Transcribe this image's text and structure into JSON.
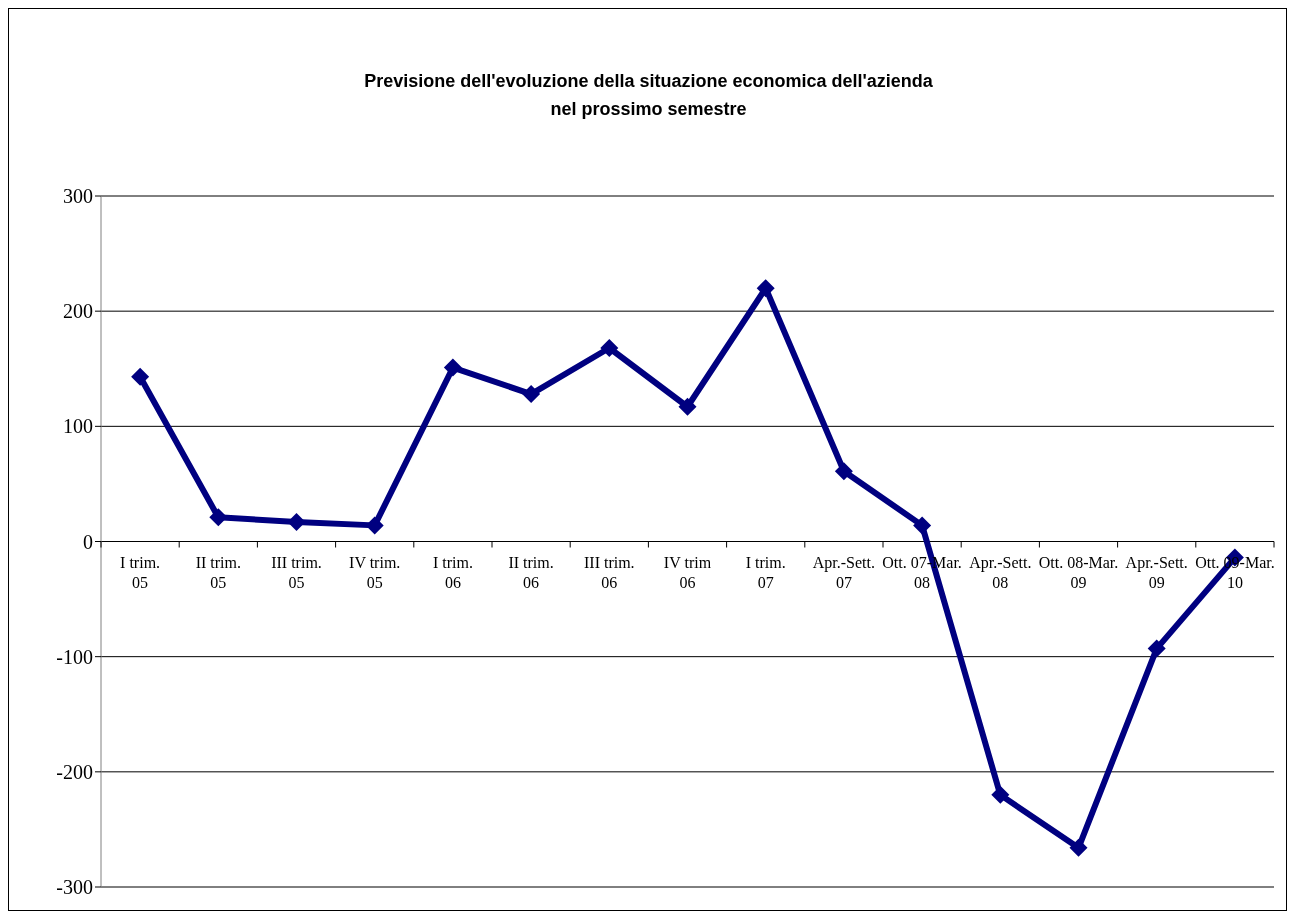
{
  "chart_data": {
    "type": "line",
    "title": "Previsione dell'evoluzione della situazione economica dell'azienda\nnel prossimo semestre",
    "categories": [
      "I trim. 05",
      "II trim. 05",
      "III trim. 05",
      "IV trim. 05",
      "I trim. 06",
      "II trim. 06",
      "III trim. 06",
      "IV trim 06",
      "I trim. 07",
      "Apr.-Sett. 07",
      "Ott. 07-Mar. 08",
      "Apr.-Sett. 08",
      "Ott. 08-Mar. 09",
      "Apr.-Sett. 09",
      "Ott. 09-Mar. 10"
    ],
    "series": [
      {
        "color": "#000080",
        "values": [
          143,
          21,
          17,
          14,
          151,
          128,
          168,
          117,
          220,
          61,
          14,
          -220,
          -266,
          -93,
          -14
        ]
      }
    ],
    "ylim": [
      -300,
      300
    ],
    "yticks": [
      -300,
      -200,
      -100,
      0,
      100,
      200,
      300
    ],
    "grid": "y",
    "legend": false,
    "marker": "diamond",
    "line_style": "solid"
  }
}
